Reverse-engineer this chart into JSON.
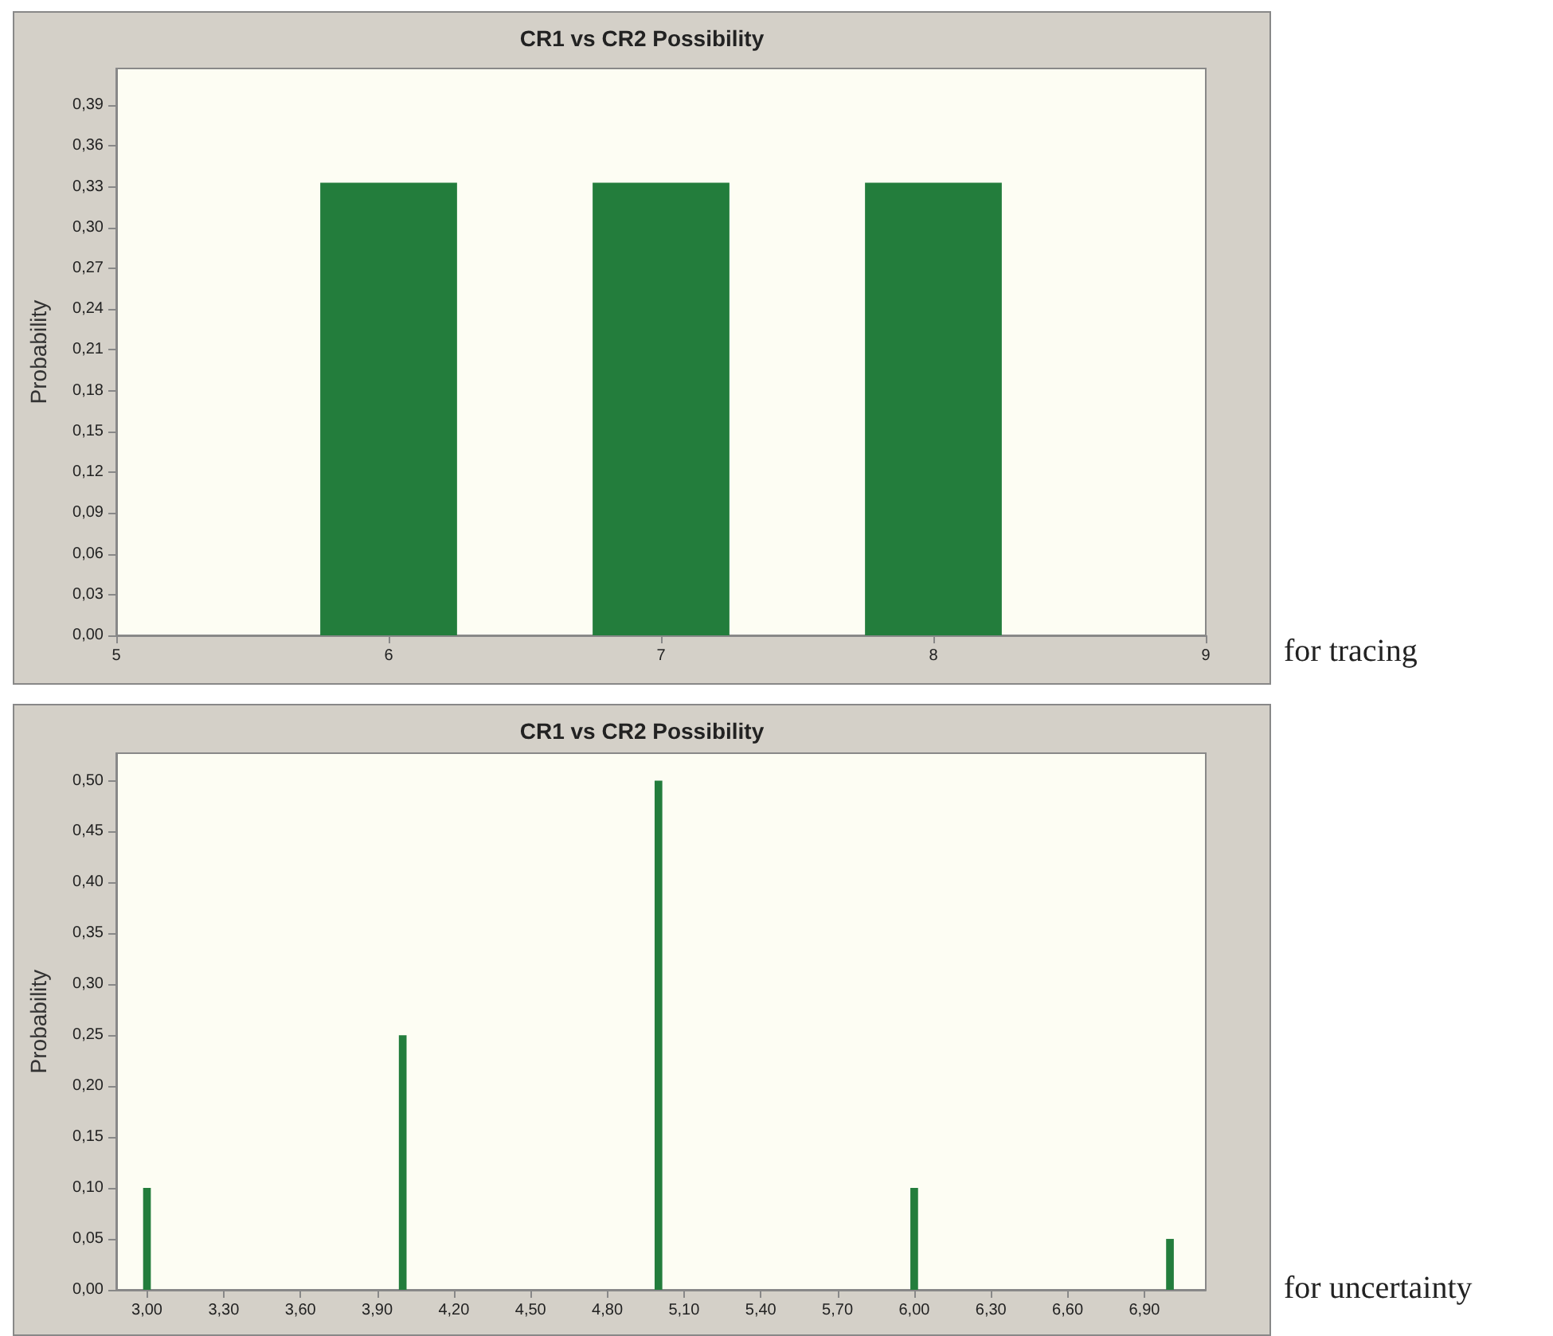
{
  "chart_data": [
    {
      "type": "bar",
      "title": "CR1 vs CR2 Possibility",
      "ylabel": "Probability",
      "x": [
        6,
        7,
        8
      ],
      "values": [
        0.333,
        0.333,
        0.333
      ],
      "color": "#237d3c",
      "xlim": [
        5,
        9
      ],
      "xticks": [
        5,
        6,
        7,
        8,
        9
      ],
      "ylim": [
        0,
        0.417
      ],
      "yticks": [
        {
          "value": 0,
          "label": "0,00"
        },
        {
          "value": 0.03,
          "label": "0,03"
        },
        {
          "value": 0.06,
          "label": "0,06"
        },
        {
          "value": 0.09,
          "label": "0,09"
        },
        {
          "value": 0.12,
          "label": "0,12"
        },
        {
          "value": 0.15,
          "label": "0,15"
        },
        {
          "value": 0.18,
          "label": "0,18"
        },
        {
          "value": 0.21,
          "label": "0,21"
        },
        {
          "value": 0.24,
          "label": "0,24"
        },
        {
          "value": 0.27,
          "label": "0,27"
        },
        {
          "value": 0.3,
          "label": "0,30"
        },
        {
          "value": 0.33,
          "label": "0,33"
        },
        {
          "value": 0.36,
          "label": "0,36"
        },
        {
          "value": 0.39,
          "label": "0,39"
        }
      ],
      "annotations": [
        "for tracing"
      ]
    },
    {
      "type": "bar",
      "title": "CR1 vs CR2 Possibility",
      "ylabel": "Probability",
      "x": [
        3,
        4,
        5,
        6,
        7
      ],
      "values": [
        0.1,
        0.25,
        0.5,
        0.1,
        0.05
      ],
      "color": "#237d3c",
      "xlim": [
        2.88,
        7.14
      ],
      "xticks": [
        {
          "value": 3,
          "label": "3,00"
        },
        {
          "value": 3.3,
          "label": "3,30"
        },
        {
          "value": 3.6,
          "label": "3,60"
        },
        {
          "value": 3.9,
          "label": "3,90"
        },
        {
          "value": 4.2,
          "label": "4,20"
        },
        {
          "value": 4.5,
          "label": "4,50"
        },
        {
          "value": 4.8,
          "label": "4,80"
        },
        {
          "value": 5.1,
          "label": "5,10"
        },
        {
          "value": 5.4,
          "label": "5,40"
        },
        {
          "value": 5.7,
          "label": "5,70"
        },
        {
          "value": 6,
          "label": "6,00"
        },
        {
          "value": 6.3,
          "label": "6,30"
        },
        {
          "value": 6.6,
          "label": "6,60"
        },
        {
          "value": 6.9,
          "label": "6,90"
        }
      ],
      "ylim": [
        0,
        0.527
      ],
      "yticks": [
        {
          "value": 0,
          "label": "0,00"
        },
        {
          "value": 0.05,
          "label": "0,05"
        },
        {
          "value": 0.1,
          "label": "0,10"
        },
        {
          "value": 0.15,
          "label": "0,15"
        },
        {
          "value": 0.2,
          "label": "0,20"
        },
        {
          "value": 0.25,
          "label": "0,25"
        },
        {
          "value": 0.3,
          "label": "0,30"
        },
        {
          "value": 0.35,
          "label": "0,35"
        },
        {
          "value": 0.4,
          "label": "0,40"
        },
        {
          "value": 0.45,
          "label": "0,45"
        },
        {
          "value": 0.5,
          "label": "0,50"
        }
      ],
      "annotations": [
        "for uncertainty"
      ]
    }
  ]
}
